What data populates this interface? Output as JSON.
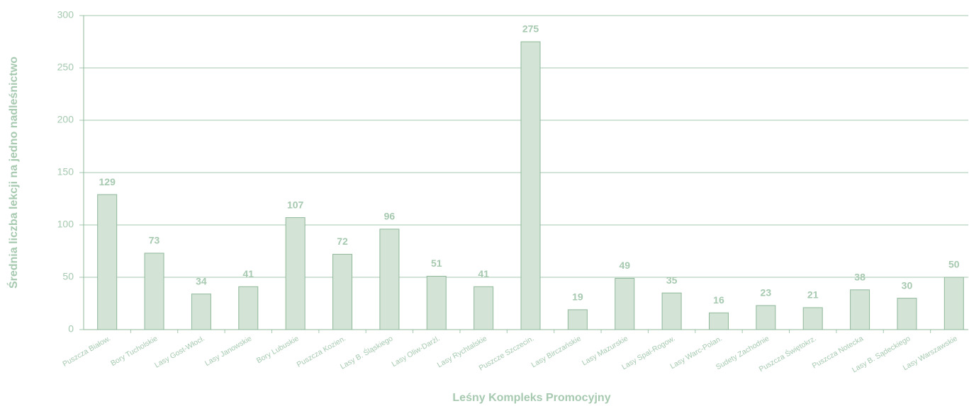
{
  "chart_data": {
    "type": "bar",
    "xlabel": "Leśny Kompleks Promocyjny",
    "ylabel": "Średnia liczba lekcji na jedno nadleśnictwo",
    "categories": [
      "Puszcza Białow.",
      "Bory Tucholskie",
      "Lasy Gost-Włocł.",
      "Lasy Janowskie",
      "Bory Lubuskie",
      "Puszcza Kozien.",
      "Lasy B. Śląskiego",
      "Lasy Oliw-Darżl.",
      "Lasy Rychtalskie",
      "Puszcze Szczecin.",
      "Lasy Birczańskie",
      "Lasy Mazurskie",
      "Lasy Spal-Rogow.",
      "Lasy Warc-Polan.",
      "Sudety Zachodnie",
      "Puszcza Świętokrz.",
      "Puszcza Notecka",
      "Lasy B. Sądeckiego",
      "Lasy Warszawskie"
    ],
    "values": [
      129,
      73,
      34,
      41,
      107,
      72,
      96,
      51,
      41,
      275,
      19,
      49,
      35,
      16,
      23,
      21,
      38,
      30,
      50
    ],
    "color": "#d3e3d6",
    "ylim": [
      0,
      300
    ],
    "yticks": [
      0,
      50,
      100,
      150,
      200,
      250,
      300
    ],
    "grid": true
  }
}
